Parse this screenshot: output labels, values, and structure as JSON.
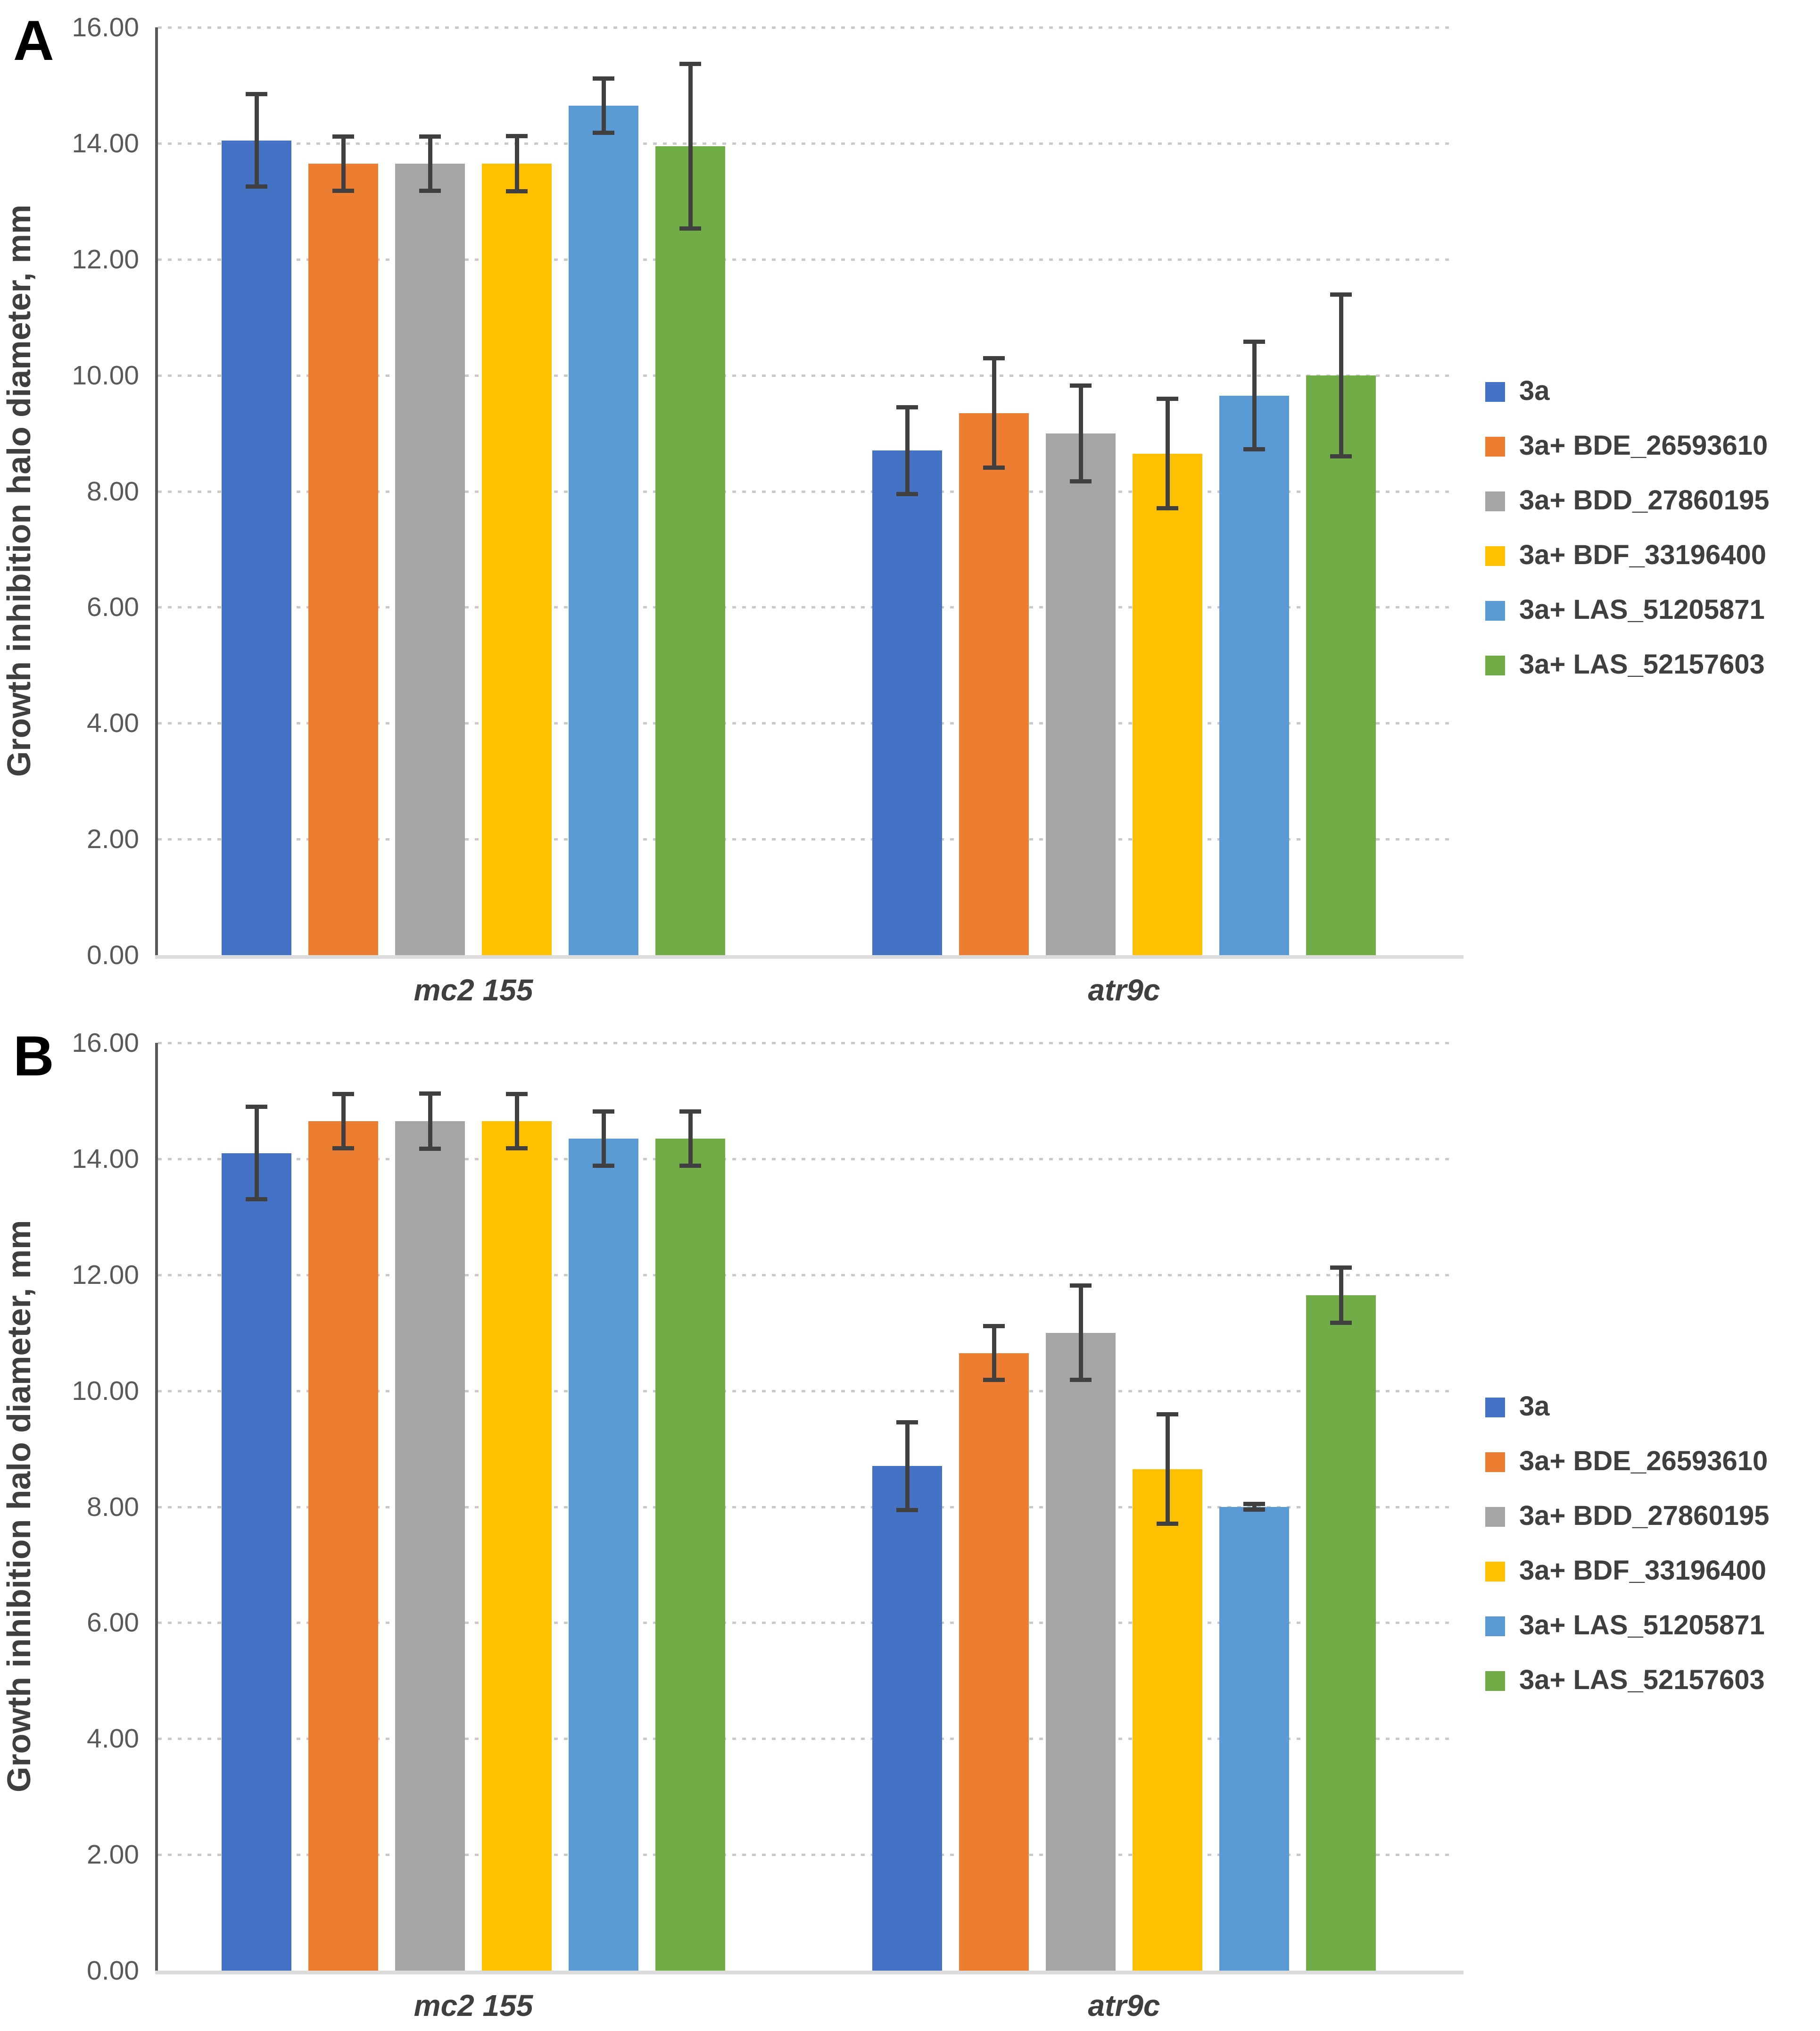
{
  "axis": {
    "y_title": "Growth inhibition halo diameter, mm",
    "y_tick_labels": [
      "0.00",
      "2.00",
      "4.00",
      "6.00",
      "8.00",
      "10.00",
      "12.00",
      "14.00",
      "16.00"
    ]
  },
  "chart_data": [
    {
      "type": "bar",
      "panel_label": "A",
      "categories": [
        "mc2 155",
        "atr9c"
      ],
      "series": [
        {
          "name": "3a",
          "color": "#4472C4",
          "values": [
            14.05,
            8.7
          ],
          "errors": [
            0.8,
            0.75
          ]
        },
        {
          "name": "3a+ BDE_26593610",
          "color": "#ED7D31",
          "values": [
            13.65,
            9.35
          ],
          "errors": [
            0.47,
            0.95
          ]
        },
        {
          "name": "3a+ BDD_27860195",
          "color": "#A5A5A5",
          "values": [
            13.65,
            9.0
          ],
          "errors": [
            0.47,
            0.83
          ]
        },
        {
          "name": "3a+ BDF_33196400",
          "color": "#FFC000",
          "values": [
            13.65,
            8.65
          ],
          "errors": [
            0.48,
            0.95
          ]
        },
        {
          "name": "3a+ LAS_51205871",
          "color": "#5B9BD5",
          "values": [
            14.65,
            9.65
          ],
          "errors": [
            0.47,
            0.93
          ]
        },
        {
          "name": "3a+ LAS_52157603",
          "color": "#70AD47",
          "values": [
            13.95,
            10.0
          ],
          "errors": [
            1.42,
            1.4
          ]
        }
      ],
      "xlabel": "",
      "ylabel": "Growth inhibition halo diameter, mm",
      "ylim": [
        0,
        16
      ],
      "ytick_step": 2,
      "grid": true,
      "legend_position": "right"
    },
    {
      "type": "bar",
      "panel_label": "B",
      "categories": [
        "mc2 155",
        "atr9c"
      ],
      "series": [
        {
          "name": "3a",
          "color": "#4472C4",
          "values": [
            14.1,
            8.7
          ],
          "errors": [
            0.8,
            0.76
          ]
        },
        {
          "name": "3a+ BDE_26593610",
          "color": "#ED7D31",
          "values": [
            14.65,
            10.65
          ],
          "errors": [
            0.47,
            0.47
          ]
        },
        {
          "name": "3a+ BDD_27860195",
          "color": "#A5A5A5",
          "values": [
            14.65,
            11.0
          ],
          "errors": [
            0.48,
            0.82
          ]
        },
        {
          "name": "3a+ BDF_33196400",
          "color": "#FFC000",
          "values": [
            14.65,
            8.65
          ],
          "errors": [
            0.47,
            0.95
          ]
        },
        {
          "name": "3a+ LAS_51205871",
          "color": "#5B9BD5",
          "values": [
            14.35,
            8.0
          ],
          "errors": [
            0.47,
            0.05
          ]
        },
        {
          "name": "3a+ LAS_52157603",
          "color": "#70AD47",
          "values": [
            14.35,
            11.65
          ],
          "errors": [
            0.47,
            0.48
          ]
        }
      ],
      "xlabel": "",
      "ylabel": "Growth inhibition halo diameter, mm",
      "ylim": [
        0,
        16
      ],
      "ytick_step": 2,
      "grid": true,
      "legend_position": "right"
    }
  ]
}
